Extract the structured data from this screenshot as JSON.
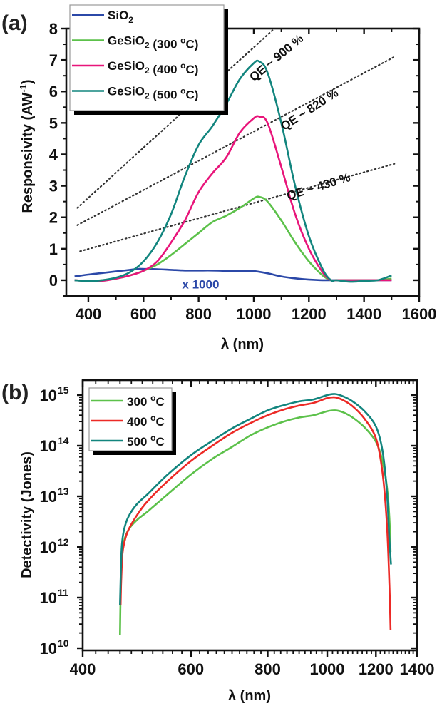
{
  "chart_data": [
    {
      "panel": "(a)",
      "type": "line",
      "title": "",
      "xlabel": "λ (nm)",
      "ylabel": "Responsivity (AW-1)",
      "xlim": [
        320,
        1600
      ],
      "ylim": [
        -0.5,
        8
      ],
      "xticks": [
        400,
        600,
        800,
        1000,
        1200,
        1400,
        1600
      ],
      "yticks": [
        0,
        1,
        2,
        3,
        4,
        5,
        6,
        7,
        8
      ],
      "grid": false,
      "legend": {
        "placement": "top-left",
        "entries": [
          "SiO2",
          "GeSiO2 (300 °C)",
          "GeSiO2 (400 °C)",
          "GeSiO2 (500 °C)"
        ]
      },
      "series": [
        {
          "name": "SiO2",
          "color": "#2b48a8",
          "x": [
            350,
            400,
            450,
            500,
            550,
            580,
            600,
            650,
            700,
            750,
            800,
            850,
            900,
            950,
            1000,
            1050,
            1100,
            1150,
            1200,
            1250,
            1300,
            1350,
            1400,
            1450,
            1500
          ],
          "y": [
            0.12,
            0.18,
            0.23,
            0.28,
            0.33,
            0.36,
            0.36,
            0.35,
            0.33,
            0.31,
            0.31,
            0.31,
            0.3,
            0.3,
            0.29,
            0.22,
            0.12,
            0.06,
            0.02,
            0.0,
            0.0,
            0.0,
            0.0,
            0.0,
            0.0
          ]
        },
        {
          "name": "GeSiO2 (300 °C)",
          "color": "#5cc14a",
          "x": [
            350,
            400,
            450,
            500,
            550,
            600,
            650,
            700,
            750,
            800,
            850,
            900,
            950,
            1000,
            1020,
            1050,
            1100,
            1150,
            1200,
            1250,
            1280,
            1300,
            1350,
            1400,
            1450,
            1500
          ],
          "y": [
            0.0,
            -0.02,
            0.0,
            0.05,
            0.15,
            0.3,
            0.5,
            0.8,
            1.15,
            1.5,
            1.85,
            2.05,
            2.3,
            2.6,
            2.65,
            2.5,
            1.9,
            1.2,
            0.6,
            0.15,
            0.0,
            0.0,
            0.0,
            0.0,
            0.0,
            0.05
          ]
        },
        {
          "name": "GeSiO2 (400 °C)",
          "color": "#e8157a",
          "x": [
            350,
            400,
            450,
            500,
            550,
            600,
            650,
            700,
            750,
            800,
            850,
            900,
            950,
            1000,
            1020,
            1050,
            1100,
            1150,
            1200,
            1250,
            1280,
            1300,
            1350,
            1400,
            1450,
            1500
          ],
          "y": [
            0.0,
            -0.02,
            -0.02,
            0.05,
            0.15,
            0.3,
            0.6,
            1.2,
            1.9,
            2.8,
            3.4,
            3.9,
            4.7,
            5.15,
            5.2,
            5.0,
            3.6,
            2.1,
            1.0,
            0.25,
            0.0,
            0.0,
            0.0,
            0.0,
            0.0,
            0.0
          ]
        },
        {
          "name": "GeSiO2 (500 °C)",
          "color": "#12857e",
          "x": [
            350,
            400,
            450,
            500,
            550,
            600,
            650,
            700,
            750,
            800,
            850,
            900,
            950,
            1000,
            1020,
            1050,
            1100,
            1150,
            1200,
            1250,
            1280,
            1300,
            1350,
            1400,
            1450,
            1500
          ],
          "y": [
            0.0,
            -0.03,
            0.0,
            0.08,
            0.25,
            0.6,
            1.2,
            2.1,
            3.3,
            4.3,
            4.9,
            5.6,
            6.4,
            6.9,
            6.95,
            6.6,
            5.0,
            3.0,
            1.4,
            0.35,
            0.0,
            0.0,
            -0.05,
            -0.02,
            0.0,
            0.15
          ]
        }
      ],
      "reference_lines": [
        {
          "label": "QE ~ 900 %",
          "x": [
            360,
            1075
          ],
          "y": [
            2.3,
            8.1
          ]
        },
        {
          "label": "QE ~ 820 %",
          "x": [
            360,
            1510
          ],
          "y": [
            1.75,
            7.1
          ]
        },
        {
          "label": "QE ~ 430 %",
          "x": [
            370,
            1510
          ],
          "y": [
            0.92,
            3.7
          ]
        }
      ],
      "annotations": [
        {
          "text": "x 1000",
          "color": "#2b48a8",
          "near_series": "SiO2"
        }
      ]
    },
    {
      "panel": "(b)",
      "type": "line",
      "title": "",
      "xlabel": "λ (nm)",
      "ylabel": "Detectivity (Jones)",
      "xscale": "log",
      "yscale": "log",
      "xlim": [
        400,
        1400
      ],
      "ylim": [
        10000000000.0,
        1600000000000000.0
      ],
      "xticks": [
        400,
        600,
        800,
        1000,
        1200,
        1400
      ],
      "yticks": [
        10000000000.0,
        100000000000.0,
        1000000000000.0,
        10000000000000.0,
        100000000000000.0,
        1000000000000000.0
      ],
      "ytick_exponents": [
        "10",
        "11",
        "12",
        "13",
        "14",
        "15"
      ],
      "grid": false,
      "legend": {
        "placement": "top-left",
        "entries": [
          "300 °C",
          "400 °C",
          "500 °C"
        ]
      },
      "series": [
        {
          "name": "300 °C",
          "color": "#5cc14a",
          "x": [
            460,
            461,
            463,
            467,
            475,
            490,
            510,
            550,
            600,
            650,
            700,
            750,
            800,
            850,
            900,
            950,
            1000,
            1030,
            1060,
            1100,
            1150,
            1200,
            1230,
            1250,
            1262,
            1268
          ],
          "y": [
            18000000000.0,
            100000000000.0,
            600000000000.0,
            1300000000000.0,
            2200000000000.0,
            3400000000000.0,
            5000000000000.0,
            11000000000000.0,
            27000000000000.0,
            55000000000000.0,
            95000000000000.0,
            160000000000000.0,
            230000000000000.0,
            300000000000000.0,
            360000000000000.0,
            400000000000000.0,
            480000000000000.0,
            500000000000000.0,
            460000000000000.0,
            360000000000000.0,
            230000000000000.0,
            120000000000000.0,
            50000000000000.0,
            16000000000000.0,
            4000000000000.0,
            800000000000.0
          ]
        },
        {
          "name": "400 °C",
          "color": "#ec2a26",
          "x": [
            461,
            462,
            464,
            468,
            475,
            490,
            510,
            550,
            600,
            650,
            700,
            750,
            800,
            850,
            900,
            950,
            1000,
            1030,
            1060,
            1100,
            1150,
            1200,
            1230,
            1250,
            1262,
            1268
          ],
          "y": [
            70000000000.0,
            200000000000.0,
            700000000000.0,
            1300000000000.0,
            2200000000000.0,
            4200000000000.0,
            8000000000000.0,
            20000000000000.0,
            50000000000000.0,
            100000000000000.0,
            180000000000000.0,
            280000000000000.0,
            400000000000000.0,
            520000000000000.0,
            620000000000000.0,
            700000000000000.0,
            870000000000000.0,
            900000000000000.0,
            800000000000000.0,
            600000000000000.0,
            340000000000000.0,
            140000000000000.0,
            30000000000000.0,
            3000000000000.0,
            200000000000.0,
            23000000000.0
          ]
        },
        {
          "name": "500 °C",
          "color": "#12857e",
          "x": [
            460,
            461,
            463,
            467,
            475,
            490,
            510,
            550,
            600,
            650,
            700,
            750,
            800,
            850,
            900,
            950,
            1000,
            1030,
            1060,
            1100,
            1150,
            1200,
            1230,
            1250,
            1262,
            1270
          ],
          "y": [
            70000000000.0,
            200000000000.0,
            1000000000000.0,
            2200000000000.0,
            4000000000000.0,
            7000000000000.0,
            11000000000000.0,
            27000000000000.0,
            65000000000000.0,
            125000000000000.0,
            220000000000000.0,
            340000000000000.0,
            500000000000000.0,
            630000000000000.0,
            750000000000000.0,
            820000000000000.0,
            1000000000000000.0,
            1050000000000000.0,
            950000000000000.0,
            750000000000000.0,
            480000000000000.0,
            240000000000000.0,
            80000000000000.0,
            13000000000000.0,
            1500000000000.0,
            450000000000.0
          ]
        }
      ]
    }
  ],
  "figure": {
    "panel_a_label": "(a)",
    "panel_b_label": "(b)"
  }
}
